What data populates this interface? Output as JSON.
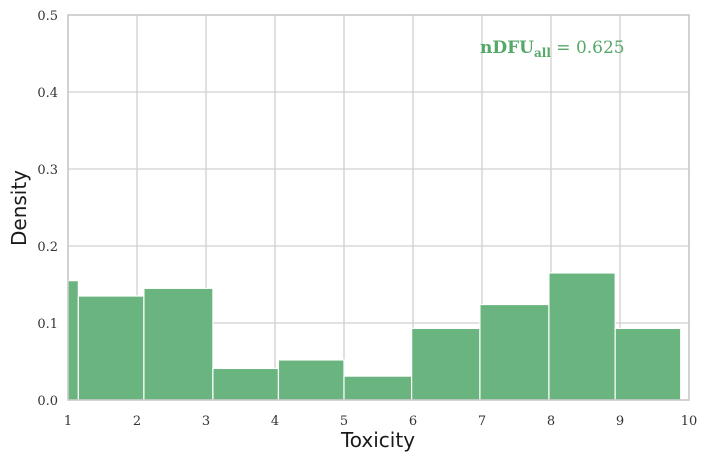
{
  "chart_data": {
    "type": "bar",
    "title": "",
    "xlabel": "Toxicity",
    "ylabel": "Density",
    "xlim": [
      1,
      10
    ],
    "ylim": [
      0,
      0.5
    ],
    "x_ticks": [
      "1",
      "2",
      "3",
      "4",
      "5",
      "6",
      "7",
      "8",
      "9",
      "10"
    ],
    "y_ticks": [
      "0.0",
      "0.1",
      "0.2",
      "0.3",
      "0.4",
      "0.5"
    ],
    "grid": true,
    "bar_color": "#6ab47f",
    "annotation": {
      "main": "nDFU",
      "sub": "all",
      "value": " = 0.625",
      "color": "#55a868"
    },
    "bins": [
      {
        "x0": 1.0,
        "x1": 1.15,
        "value": 0.155
      },
      {
        "x0": 1.15,
        "x1": 2.1,
        "value": 0.135
      },
      {
        "x0": 2.1,
        "x1": 3.1,
        "value": 0.145
      },
      {
        "x0": 3.1,
        "x1": 4.05,
        "value": 0.041
      },
      {
        "x0": 4.05,
        "x1": 5.0,
        "value": 0.052
      },
      {
        "x0": 5.0,
        "x1": 5.98,
        "value": 0.031
      },
      {
        "x0": 5.98,
        "x1": 6.97,
        "value": 0.093
      },
      {
        "x0": 6.97,
        "x1": 7.97,
        "value": 0.124
      },
      {
        "x0": 7.97,
        "x1": 8.93,
        "value": 0.165
      },
      {
        "x0": 8.93,
        "x1": 9.88,
        "value": 0.093
      }
    ]
  }
}
